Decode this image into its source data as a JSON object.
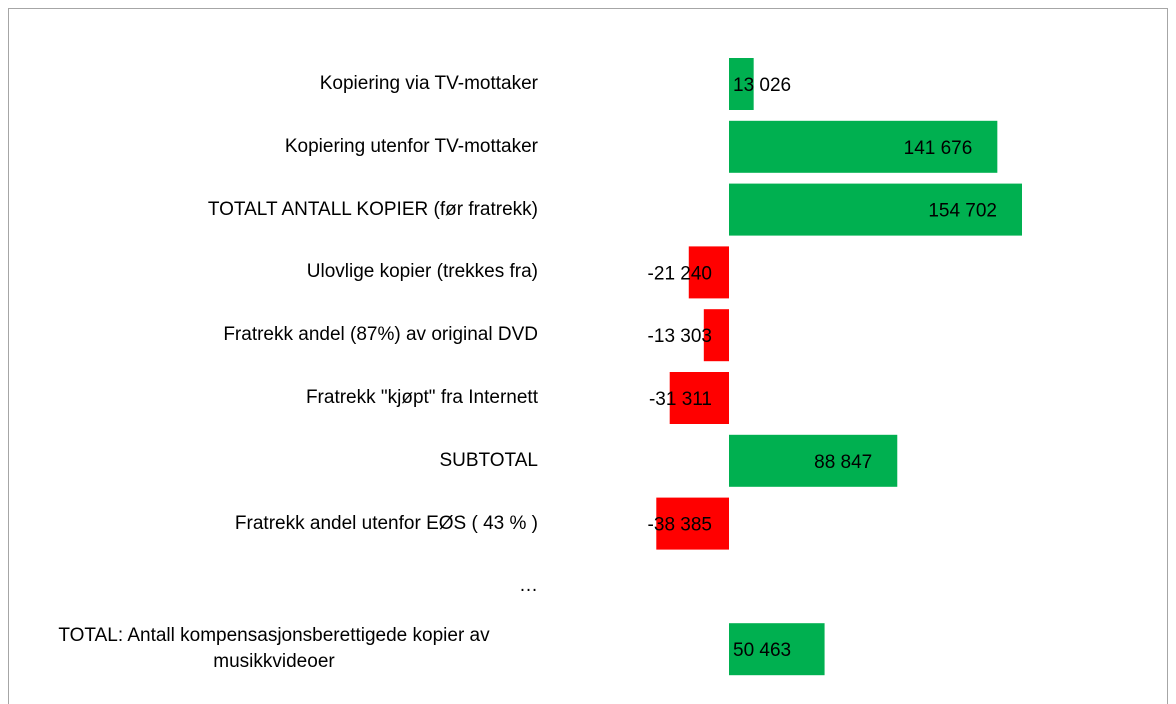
{
  "chart_data": {
    "type": "bar",
    "orientation": "horizontal",
    "categories": [
      "Kopiering via TV-mottaker",
      "Kopiering utenfor TV-mottaker",
      "TOTALT ANTALL KOPIER (før fratrekk)",
      "Ulovlige kopier (trekkes fra)",
      "Fratrekk andel (87%) av original DVD",
      "Fratrekk \"kjøpt\" fra Internett",
      "SUBTOTAL",
      "Fratrekk andel utenfor EØS ( 43 % )",
      "…",
      "TOTAL: Antall kompensasjonsberettigede kopier av musikkvideoer"
    ],
    "values": [
      13026,
      141676,
      154702,
      -21240,
      -13303,
      -31311,
      88847,
      -38385,
      null,
      50463
    ],
    "value_labels": [
      "13 026",
      "141 676",
      "154 702",
      "-21 240",
      "-13 303",
      "-31 311",
      "88 847",
      "-38 385",
      null,
      "50 463"
    ],
    "positive_color": "#00b050",
    "negative_color": "#ff0000"
  }
}
